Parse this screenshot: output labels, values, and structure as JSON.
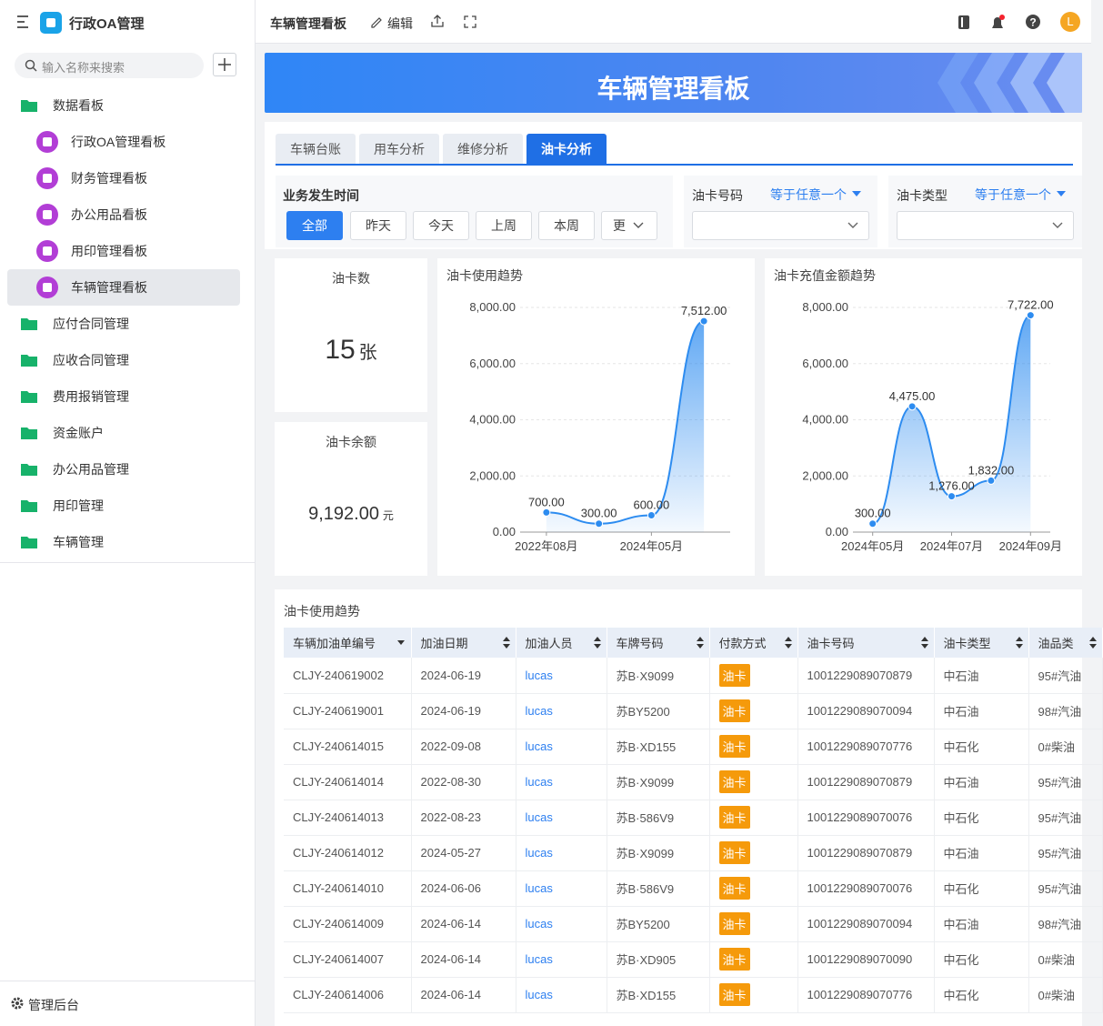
{
  "sidebar": {
    "app_title": "行政OA管理",
    "search_placeholder": "输入名称来搜索",
    "menu": [
      {
        "label": "数据看板",
        "children": [
          "行政OA管理看板",
          "财务管理看板",
          "办公用品看板",
          "用印管理看板",
          "车辆管理看板"
        ]
      },
      {
        "label": "应付合同管理"
      },
      {
        "label": "应收合同管理"
      },
      {
        "label": "费用报销管理"
      },
      {
        "label": "资金账户"
      },
      {
        "label": "办公用品管理"
      },
      {
        "label": "用印管理"
      },
      {
        "label": "车辆管理"
      }
    ],
    "footer": "管理后台"
  },
  "header": {
    "title": "车辆管理看板",
    "edit": "编辑",
    "avatar": "L"
  },
  "banner": {
    "title": "车辆管理看板"
  },
  "tabs": [
    "车辆台账",
    "用车分析",
    "维修分析",
    "油卡分析"
  ],
  "active_tab": 3,
  "filters": {
    "time": {
      "label": "业务发生时间",
      "options": [
        "全部",
        "昨天",
        "今天",
        "上周",
        "本周",
        "更"
      ]
    },
    "card_no": {
      "label": "油卡号码",
      "operator": "等于任意一个"
    },
    "card_type": {
      "label": "油卡类型",
      "operator": "等于任意一个"
    }
  },
  "stats": [
    {
      "label": "油卡数",
      "value": "15",
      "unit": "张"
    },
    {
      "label": "油卡余额",
      "value": "9,192.00",
      "unit": "元"
    }
  ],
  "chart_data": [
    {
      "type": "line",
      "title": "油卡使用趋势",
      "area": true,
      "color": "#2d8cf0",
      "categories": [
        "2022年08月",
        null,
        "2024年05月",
        null
      ],
      "values": [
        700,
        300,
        600,
        7512
      ],
      "value_labels": [
        "700.00",
        "300.00",
        "600.00",
        "7,512.00"
      ],
      "ylim": [
        0,
        8000
      ],
      "yticks": [
        {
          "value": 0,
          "label": "0.00"
        },
        {
          "value": 2000,
          "label": "2,000.00"
        },
        {
          "value": 4000,
          "label": "4,000.00"
        },
        {
          "value": 6000,
          "label": "6,000.00"
        },
        {
          "value": 8000,
          "label": "8,000.00"
        }
      ],
      "grid": true
    },
    {
      "type": "line",
      "title": "油卡充值金额趋势",
      "area": true,
      "color": "#2d8cf0",
      "categories": [
        "2024年05月",
        null,
        "2024年07月",
        null,
        "2024年09月"
      ],
      "values": [
        300,
        4475,
        1276,
        1832,
        7722
      ],
      "value_labels": [
        "300.00",
        "4,475.00",
        "1,276.00",
        "1,832.00",
        "7,722.00"
      ],
      "ylim": [
        0,
        8000
      ],
      "yticks": [
        {
          "value": 0,
          "label": "0.00"
        },
        {
          "value": 2000,
          "label": "2,000.00"
        },
        {
          "value": 4000,
          "label": "4,000.00"
        },
        {
          "value": 6000,
          "label": "6,000.00"
        },
        {
          "value": 8000,
          "label": "8,000.00"
        }
      ],
      "grid": true
    }
  ],
  "table": {
    "title": "油卡使用趋势",
    "columns": [
      "车辆加油单编号",
      "加油日期",
      "加油人员",
      "车牌号码",
      "付款方式",
      "油卡号码",
      "油卡类型",
      "油品类"
    ],
    "rows": [
      [
        "CLJY-240619002",
        "2024-06-19",
        "lucas",
        "苏B·X9099",
        "油卡",
        "1001229089070879",
        "中石油",
        "95#汽油"
      ],
      [
        "CLJY-240619001",
        "2024-06-19",
        "lucas",
        "苏BY5200",
        "油卡",
        "1001229089070094",
        "中石油",
        "98#汽油"
      ],
      [
        "CLJY-240614015",
        "2022-09-08",
        "lucas",
        "苏B·XD155",
        "油卡",
        "1001229089070776",
        "中石化",
        "0#柴油"
      ],
      [
        "CLJY-240614014",
        "2022-08-30",
        "lucas",
        "苏B·X9099",
        "油卡",
        "1001229089070879",
        "中石油",
        "95#汽油"
      ],
      [
        "CLJY-240614013",
        "2022-08-23",
        "lucas",
        "苏B·586V9",
        "油卡",
        "1001229089070076",
        "中石化",
        "95#汽油"
      ],
      [
        "CLJY-240614012",
        "2024-05-27",
        "lucas",
        "苏B·X9099",
        "油卡",
        "1001229089070879",
        "中石油",
        "95#汽油"
      ],
      [
        "CLJY-240614010",
        "2024-06-06",
        "lucas",
        "苏B·586V9",
        "油卡",
        "1001229089070076",
        "中石化",
        "95#汽油"
      ],
      [
        "CLJY-240614009",
        "2024-06-14",
        "lucas",
        "苏BY5200",
        "油卡",
        "1001229089070094",
        "中石油",
        "98#汽油"
      ],
      [
        "CLJY-240614007",
        "2024-06-14",
        "lucas",
        "苏B·XD905",
        "油卡",
        "1001229089070090",
        "中石化",
        "0#柴油"
      ],
      [
        "CLJY-240614006",
        "2024-06-14",
        "lucas",
        "苏B·XD155",
        "油卡",
        "1001229089070776",
        "中石化",
        "0#柴油"
      ]
    ]
  }
}
